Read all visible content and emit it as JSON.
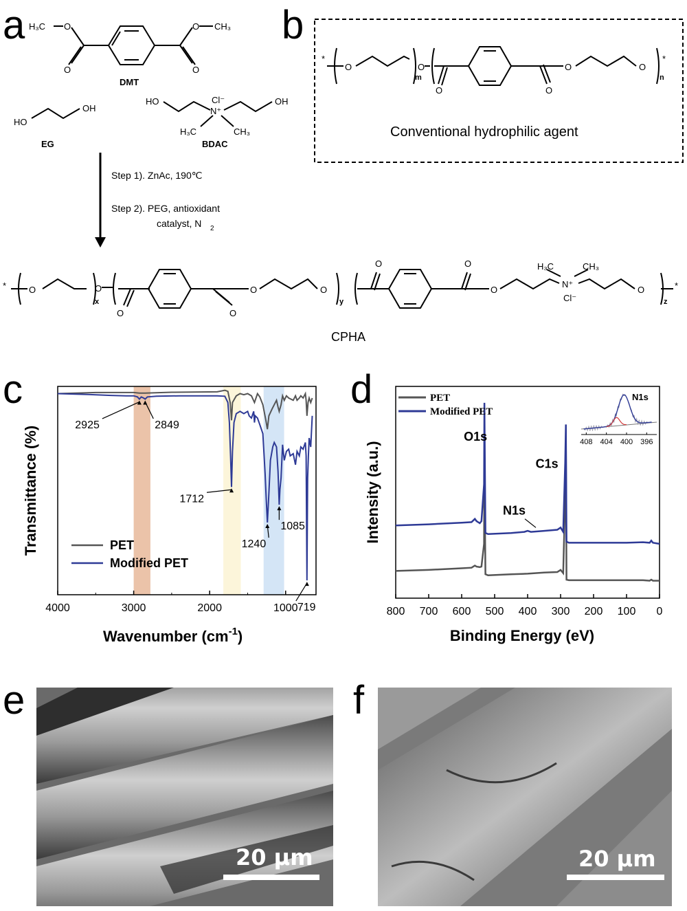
{
  "panels": {
    "a": "a",
    "b": "b",
    "c": "c",
    "d": "d",
    "e": "e",
    "f": "f"
  },
  "scheme": {
    "dmt_label": "DMT",
    "eg_label": "EG",
    "bdac_label": "BDAC",
    "step1": "Step 1). ZnAc, 190℃",
    "step2_line1": "Step 2). PEG, antioxidant",
    "step2_line2": "catalyst, N",
    "step2_sub": "2",
    "product_label": "CPHA",
    "conventional_label": "Conventional hydrophilic agent",
    "atoms": {
      "h3c": "H₃C",
      "ch3": "CH₃",
      "o": "O",
      "oh": "OH",
      "ho": "HO",
      "cl": "Cl⁻",
      "n": "N⁺",
      "star": "*",
      "m": "m",
      "n_sub": "n",
      "x": "x",
      "y": "y",
      "z": "z"
    }
  },
  "chart_data": [
    {
      "type": "line",
      "panel": "c",
      "xlabel": "Wavenumber (cm",
      "xlabel_sup": "-1",
      "xlabel_end": ")",
      "ylabel": "Transmittance (%)",
      "xlim": [
        4000,
        600
      ],
      "x_reversed": true,
      "xticks": [
        4000,
        3000,
        2000,
        1000
      ],
      "legend": "bottom-left",
      "series": [
        {
          "name": "PET",
          "color": "#555555",
          "x": [
            4000,
            3500,
            3000,
            2925,
            2849,
            2500,
            1900,
            1800,
            1760,
            1730,
            1712,
            1700,
            1650,
            1600,
            1550,
            1500,
            1450,
            1410,
            1370,
            1340,
            1300,
            1260,
            1240,
            1220,
            1180,
            1150,
            1120,
            1100,
            1085,
            1060,
            1040,
            1018,
            990,
            960,
            900,
            870,
            850,
            820,
            800,
            770,
            740,
            730,
            719,
            705,
            690,
            670,
            650
          ],
          "y": [
            98,
            98.5,
            98.5,
            98.2,
            98.2,
            98.6,
            98.8,
            99.5,
            99,
            94,
            86,
            94,
            97,
            98,
            97.5,
            98,
            97,
            94,
            98,
            96.5,
            93,
            86,
            82,
            88,
            91,
            93,
            95,
            92,
            90,
            93,
            97,
            95,
            97,
            96,
            95,
            97,
            95,
            96,
            97,
            96,
            98,
            95,
            88,
            94,
            96,
            94,
            96
          ]
        },
        {
          "name": "Modified PET",
          "color": "#2e3a96",
          "x": [
            4000,
            3600,
            3300,
            3100,
            3000,
            2950,
            2925,
            2900,
            2870,
            2849,
            2820,
            2700,
            2400,
            2100,
            1900,
            1800,
            1760,
            1740,
            1725,
            1712,
            1700,
            1680,
            1650,
            1600,
            1550,
            1500,
            1480,
            1450,
            1420,
            1410,
            1400,
            1370,
            1340,
            1300,
            1270,
            1255,
            1240,
            1225,
            1200,
            1170,
            1150,
            1120,
            1100,
            1085,
            1075,
            1060,
            1040,
            1018,
            990,
            960,
            940,
            900,
            870,
            850,
            820,
            800,
            770,
            740,
            730,
            719,
            710,
            700,
            690,
            670,
            650
          ],
          "y": [
            98,
            97.6,
            97.2,
            97,
            97,
            96.5,
            95.5,
            96.5,
            96,
            95.5,
            96.5,
            96.8,
            97,
            97,
            97,
            96.8,
            94,
            85,
            70,
            56,
            72,
            85,
            89,
            90,
            89,
            90,
            88,
            87,
            90,
            85,
            88,
            87,
            84,
            80,
            62,
            50,
            40,
            50,
            68,
            74,
            76,
            74,
            63,
            48,
            55,
            60,
            75,
            68,
            72,
            73,
            70,
            71,
            66,
            72,
            70,
            74,
            73,
            76,
            70,
            14,
            60,
            70,
            78,
            74,
            88
          ]
        }
      ],
      "bands": [
        {
          "from": 3000,
          "to": 2780,
          "color": "#e8b99a"
        },
        {
          "from": 1820,
          "to": 1590,
          "color": "#fbf3d3"
        },
        {
          "from": 1290,
          "to": 1020,
          "color": "#cde0f5"
        }
      ],
      "annotations": [
        {
          "label": "2925",
          "x": 2925
        },
        {
          "label": "2849",
          "x": 2849
        },
        {
          "label": "1712",
          "x": 1712
        },
        {
          "label": "1240",
          "x": 1240
        },
        {
          "label": "1085",
          "x": 1085
        },
        {
          "label": "719",
          "x": 719
        }
      ]
    },
    {
      "type": "line",
      "panel": "d",
      "xlabel": "Binding Energy (eV)",
      "ylabel": "Intensity (a.u.)",
      "xlim": [
        800,
        0
      ],
      "x_reversed": true,
      "xticks": [
        800,
        700,
        600,
        500,
        400,
        300,
        200,
        100,
        0
      ],
      "legend": "top-left",
      "series": [
        {
          "name": "PET",
          "color": "#555555",
          "x": [
            800,
            700,
            600,
            570,
            560,
            555,
            545,
            540,
            532,
            531,
            528,
            520,
            450,
            400,
            350,
            310,
            300,
            292,
            286,
            284,
            282,
            275,
            200,
            100,
            50,
            30,
            25,
            20,
            0
          ],
          "y": [
            20,
            21,
            22.5,
            23,
            25,
            24,
            23.5,
            24,
            45,
            120,
            17,
            16,
            17,
            17.5,
            18.5,
            19,
            21,
            18,
            90,
            140,
            12,
            11.5,
            11.5,
            11.5,
            11.5,
            11,
            12,
            11,
            11
          ]
        },
        {
          "name": "Modified PET",
          "color": "#2e3a96",
          "x": [
            800,
            700,
            600,
            570,
            560,
            555,
            545,
            540,
            532,
            531,
            528,
            520,
            450,
            410,
            400,
            390,
            350,
            310,
            300,
            292,
            286,
            284,
            282,
            275,
            200,
            100,
            50,
            30,
            25,
            20,
            0
          ],
          "y": [
            62,
            63,
            64.5,
            65,
            68,
            66,
            64,
            66,
            100,
            175,
            55,
            54,
            55,
            56,
            57,
            56,
            57,
            58,
            60,
            56,
            120,
            155,
            47,
            46,
            46,
            46,
            46.5,
            46,
            48,
            46,
            45
          ]
        }
      ],
      "annotations": [
        {
          "label": "O1s",
          "x": 531
        },
        {
          "label": "C1s",
          "x": 284
        },
        {
          "label": "N1s",
          "x": 400
        }
      ],
      "inset": {
        "xticks": [
          408,
          404,
          400,
          396
        ],
        "xlim": [
          409,
          394
        ],
        "label": "N1s"
      }
    }
  ],
  "sem": {
    "e_scale": "20 μm",
    "f_scale": "20 μm"
  }
}
